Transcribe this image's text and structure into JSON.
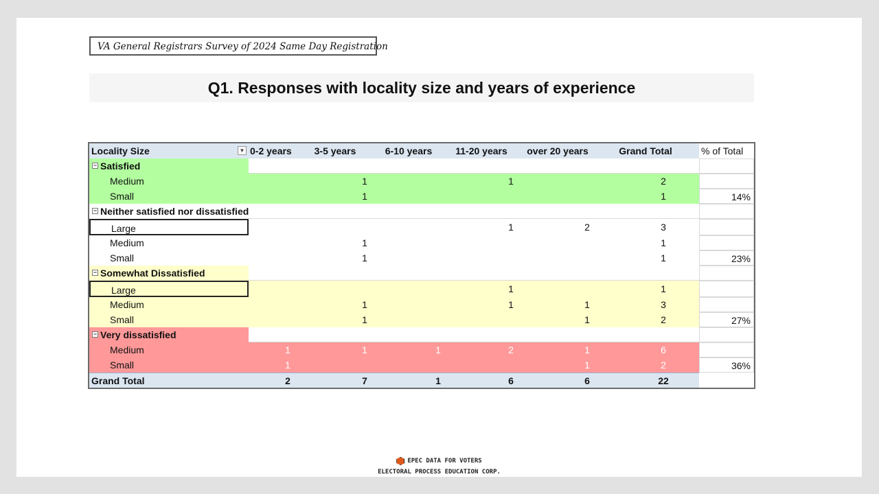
{
  "survey_label": "VA General Registrars Survey of 2024 Same Day Registration",
  "title": "Q1. Responses with locality size and years of experience",
  "colors": {
    "header": "#dce6f1",
    "satisfied": "#b3ffa0",
    "neutral": "#ffffff",
    "somewhat_dissatisfied": "#ffffcc",
    "very_dissatisfied": "#ff9999"
  },
  "table": {
    "header": {
      "row_label": "Locality Size",
      "columns": [
        "0-2 years",
        "3-5 years",
        "6-10 years",
        "11-20 years",
        "over 20 years",
        "Grand Total"
      ],
      "pct_label": "% of Total"
    },
    "groups": [
      {
        "label": "Satisfied",
        "collapse_icon": "minus-box-icon",
        "rows": [
          {
            "label": "Medium",
            "values": [
              "",
              "1",
              "",
              "1",
              "",
              "2"
            ],
            "pct": ""
          },
          {
            "label": "Small",
            "values": [
              "",
              "1",
              "",
              "",
              "",
              "1"
            ],
            "pct": "14%"
          }
        ]
      },
      {
        "label": "Neither satisfied nor dissatisfied",
        "collapse_icon": "minus-box-icon",
        "rows": [
          {
            "label": "Large",
            "values": [
              "",
              "",
              "",
              "1",
              "2",
              "3"
            ],
            "pct": ""
          },
          {
            "label": "Medium",
            "values": [
              "",
              "1",
              "",
              "",
              "",
              "1"
            ],
            "pct": ""
          },
          {
            "label": "Small",
            "values": [
              "",
              "1",
              "",
              "",
              "",
              "1"
            ],
            "pct": "23%"
          }
        ]
      },
      {
        "label": "Somewhat Dissatisfied",
        "collapse_icon": "minus-box-icon",
        "rows": [
          {
            "label": "Large",
            "values": [
              "",
              "",
              "",
              "1",
              "",
              "1"
            ],
            "pct": ""
          },
          {
            "label": "Medium",
            "values": [
              "",
              "1",
              "",
              "1",
              "1",
              "3"
            ],
            "pct": ""
          },
          {
            "label": "Small",
            "values": [
              "",
              "1",
              "",
              "",
              "1",
              "2"
            ],
            "pct": "27%"
          }
        ]
      },
      {
        "label": "Very dissatisfied",
        "collapse_icon": "minus-box-icon",
        "rows": [
          {
            "label": "Medium",
            "values": [
              "1",
              "1",
              "1",
              "2",
              "1",
              "6"
            ],
            "pct": ""
          },
          {
            "label": "Small",
            "values": [
              "1",
              "",
              "",
              "",
              "1",
              "2"
            ],
            "pct": "36%"
          }
        ]
      }
    ],
    "grand_total": {
      "label": "Grand Total",
      "values": [
        "2",
        "7",
        "1",
        "6",
        "6",
        "22"
      ]
    }
  },
  "footer": {
    "line1": "EPEC DATA FOR VOTERS",
    "line2": "ELECTORAL PROCESS EDUCATION CORP.",
    "logo_icon": "hexagon-logo-icon"
  }
}
